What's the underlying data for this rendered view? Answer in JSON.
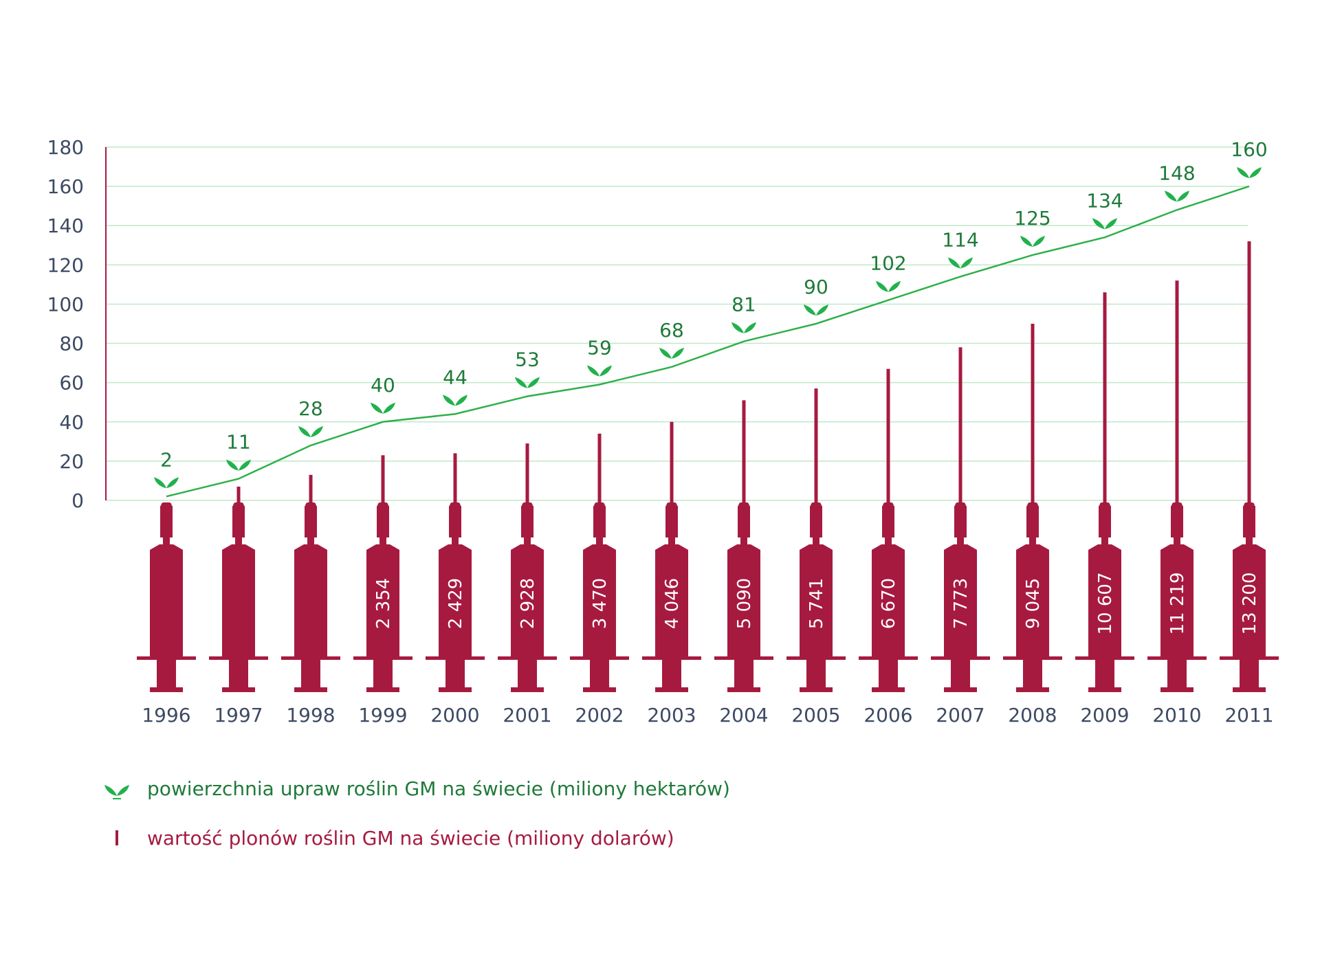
{
  "colors": {
    "grid": "#bfe8c8",
    "line": "#2fb04a",
    "leaf": "#22b14c",
    "area_text": "#1f7a3a",
    "syringe": "#a61a40",
    "axis_text": "#3d4a63"
  },
  "chart_data": {
    "type": "line",
    "title": "",
    "xlabel": "",
    "ylabel": "",
    "ylim": [
      0,
      180
    ],
    "yticks": [
      "0",
      "20",
      "40",
      "60",
      "80",
      "100",
      "120",
      "140",
      "160",
      "180"
    ],
    "grid": true,
    "x": [
      "1996",
      "1997",
      "1998",
      "1999",
      "2000",
      "2001",
      "2002",
      "2003",
      "2004",
      "2005",
      "2006",
      "2007",
      "2008",
      "2009",
      "2010",
      "2011"
    ],
    "series": [
      {
        "name": "powierzchnia upraw roślin GM na świecie (miliony hektarów)",
        "kind": "line",
        "values": [
          2,
          11,
          28,
          40,
          44,
          53,
          59,
          68,
          81,
          90,
          102,
          114,
          125,
          134,
          148,
          160
        ],
        "labels": [
          "2",
          "11",
          "28",
          "40",
          "44",
          "53",
          "59",
          "68",
          "81",
          "90",
          "102",
          "114",
          "125",
          "134",
          "148",
          "160"
        ]
      },
      {
        "name": "wartość plonów roślin GM na świecie (miliony dolarów)",
        "kind": "needle",
        "values": [
          null,
          null,
          null,
          2354,
          2429,
          2928,
          3470,
          4046,
          5090,
          5741,
          6670,
          7773,
          9045,
          10607,
          11219,
          13200
        ],
        "labels": [
          "",
          "",
          "",
          "2 354",
          "2 429",
          "2 928",
          "3 470",
          "4 046",
          "5 090",
          "5 741",
          "6 670",
          "7 773",
          "9 045",
          "10 607",
          "11 219",
          "13 200"
        ],
        "needle_scale_note": "needle heights read on left axis",
        "needle_axis_values": [
          null,
          7,
          13,
          23,
          24,
          29,
          34,
          40,
          51,
          57,
          67,
          78,
          90,
          106,
          112,
          132
        ]
      }
    ],
    "legend": "bottom-left"
  },
  "legend": {
    "area_label": "powierzchnia upraw roślin GM na świecie (miliony hektarów)",
    "value_label": "wartość plonów roślin GM na świecie (miliony dolarów)"
  }
}
